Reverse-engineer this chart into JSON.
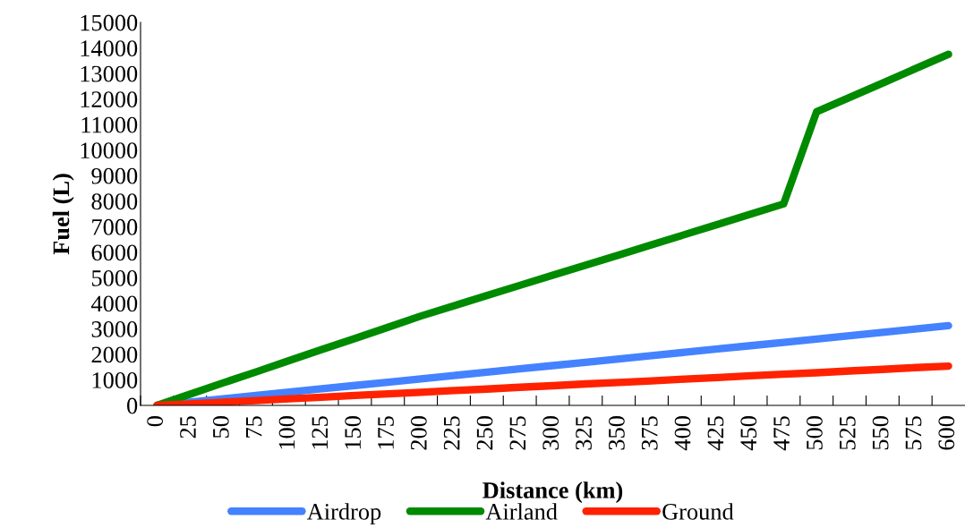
{
  "chart_data": {
    "type": "line",
    "xlabel": "Distance (km)",
    "ylabel": "Fuel (L)",
    "categories": [
      "0",
      "25",
      "50",
      "75",
      "100",
      "125",
      "150",
      "175",
      "200",
      "225",
      "250",
      "275",
      "300",
      "325",
      "350",
      "375",
      "400",
      "425",
      "450",
      "475",
      "500",
      "525",
      "550",
      "575",
      "600"
    ],
    "series": [
      {
        "name": "Airdrop",
        "color": "#4482ff",
        "values": [
          0,
          130,
          260,
          390,
          520,
          650,
          780,
          910,
          1040,
          1170,
          1300,
          1430,
          1560,
          1690,
          1820,
          1950,
          2080,
          2210,
          2340,
          2470,
          2600,
          2730,
          2860,
          2990,
          3120
        ]
      },
      {
        "name": "Airland",
        "color": "#008a00",
        "values": [
          0,
          440,
          880,
          1310,
          1750,
          2190,
          2620,
          3060,
          3500,
          3900,
          4300,
          4700,
          5100,
          5490,
          5890,
          6290,
          6690,
          7090,
          7490,
          7890,
          11500,
          12060,
          12620,
          13190,
          13750
        ]
      },
      {
        "name": "Ground",
        "color": "#ff2200",
        "values": [
          0,
          60,
          130,
          190,
          260,
          320,
          390,
          450,
          510,
          580,
          640,
          710,
          770,
          840,
          900,
          960,
          1030,
          1090,
          1160,
          1220,
          1280,
          1350,
          1410,
          1480,
          1540
        ]
      }
    ],
    "ylim": [
      0,
      15000
    ],
    "yticks": [
      0,
      1000,
      2000,
      3000,
      4000,
      5000,
      6000,
      7000,
      8000,
      9000,
      10000,
      11000,
      12000,
      13000,
      14000,
      15000
    ],
    "grid": false,
    "legend": "bottom",
    "marker": "none",
    "line_style": "solid"
  }
}
